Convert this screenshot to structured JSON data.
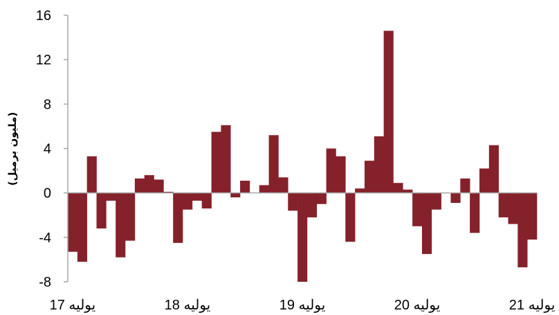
{
  "chart_data": {
    "type": "bar",
    "title": "",
    "xlabel": "",
    "ylabel": "(مليون برميل)",
    "ylim": [
      -8,
      16
    ],
    "yticks": [
      16,
      12,
      8,
      4,
      0,
      -4,
      -8
    ],
    "xtick_labels": [
      "يوليه 17",
      "يوليه 18",
      "يوليه 19",
      "يوليه 20",
      "يوليه 21"
    ],
    "grid": false,
    "legend": "none",
    "bar_color": "#85212a",
    "series": [
      {
        "values": [
          -5.3,
          -6.2,
          3.3,
          -3.2,
          -0.7,
          -5.8,
          -4.3,
          1.3,
          1.6,
          1.2,
          0.1,
          -4.5,
          -1.5,
          -0.7,
          -1.4,
          5.5,
          6.1,
          -0.4,
          1.1,
          0.0,
          0.7,
          5.2,
          1.4,
          -1.6,
          -8.0,
          -2.2,
          -1.0,
          4.0,
          3.3,
          -4.4,
          0.4,
          2.9,
          5.1,
          14.6,
          0.9,
          0.3,
          -3.0,
          -5.5,
          -1.5,
          0.0,
          -0.9,
          1.3,
          -3.6,
          2.2,
          4.3,
          -2.2,
          -2.8,
          -6.7,
          -4.2
        ]
      }
    ]
  }
}
